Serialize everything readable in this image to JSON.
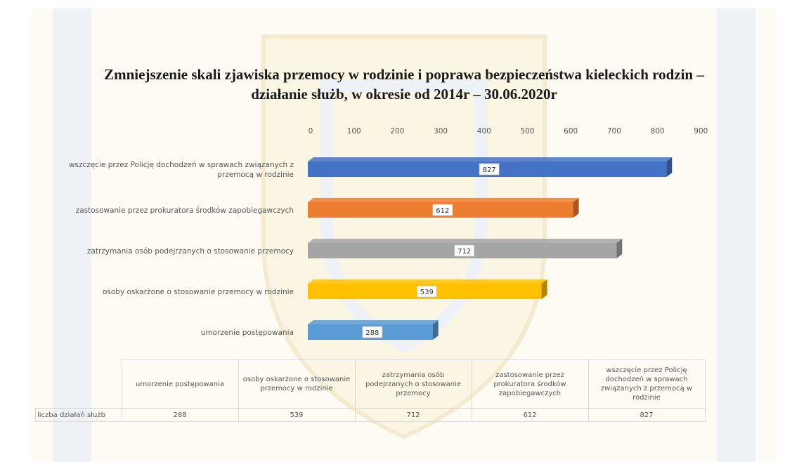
{
  "title_lines": [
    "Zmniejszenie skali zjawiska przemocy w rodzinie i poprawa  bezpieczeństwa  kieleckich rodzin –",
    "działanie służb, w okresie od  2014r – 30.06.2020r"
  ],
  "chart_data": {
    "type": "bar",
    "orientation": "horizontal",
    "style": "3d",
    "xlim": [
      0,
      900
    ],
    "ticks": [
      "0",
      "100",
      "200",
      "300",
      "400",
      "500",
      "600",
      "700",
      "800",
      "900"
    ],
    "categories": [
      "wszczęcie przez Policję dochodzeń w sprawach związanych z przemocą w rodzinie",
      "zastosowanie przez prokuratora środków zapobiegawczych",
      "zatrzymania osób podejrzanych o stosowanie przemocy",
      "osoby oskarżone o stosowanie przemocy w rodzinie",
      "umorzenie postępowania"
    ],
    "category_label_lines": [
      [
        "wszczęcie przez Policję dochodzeń w sprawach związanych z",
        "przemocą w rodzinie"
      ],
      [
        "zastosowanie przez prokuratora środków zapobiegawczych"
      ],
      [
        "zatrzymania osób podejrzanych o stosowanie przemocy"
      ],
      [
        "osoby oskarżone o stosowanie przemocy w rodzinie"
      ],
      [
        "umorzenie postępowania"
      ]
    ],
    "values": [
      827,
      612,
      712,
      539,
      288
    ],
    "colors": [
      "#4472c4",
      "#ed7d31",
      "#a5a5a5",
      "#ffc000",
      "#5b9bd5"
    ],
    "grid": false,
    "legend": "none"
  },
  "table": {
    "row_label": "liczba działań służb",
    "columns": [
      "umorzenie postępowania",
      "osoby oskarżone o stosowanie przemocy w rodzinie",
      "zatrzymania osób podejrzanych o stosowanie przemocy",
      "zastosowanie przez prokuratora środków zapobiegawczych",
      "wszczęcie przez Policję dochodzeń w sprawach związanych z przemocą w rodzinie"
    ],
    "values": [
      "288",
      "539",
      "712",
      "612",
      "827"
    ]
  }
}
